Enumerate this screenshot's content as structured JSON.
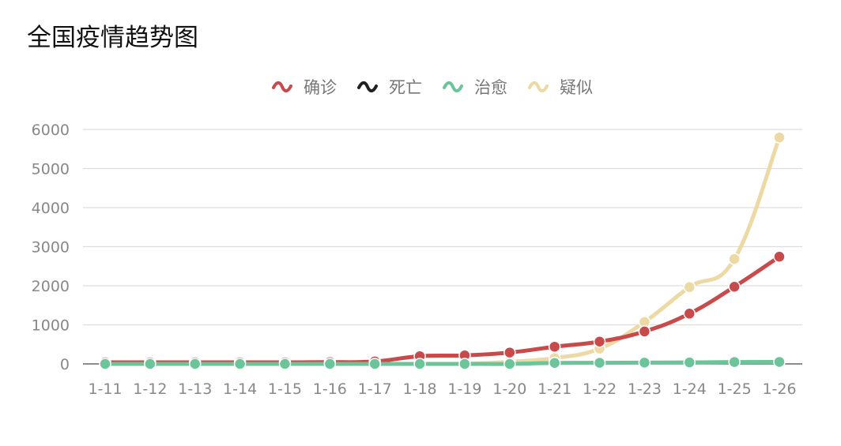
{
  "chart_data": {
    "type": "line",
    "title": "全国疫情趋势图",
    "categories": [
      "1-11",
      "1-12",
      "1-13",
      "1-14",
      "1-15",
      "1-16",
      "1-17",
      "1-18",
      "1-19",
      "1-20",
      "1-21",
      "1-22",
      "1-23",
      "1-24",
      "1-25",
      "1-26"
    ],
    "ylim": [
      0,
      6000
    ],
    "yticks": [
      0,
      1000,
      2000,
      3000,
      4000,
      5000,
      6000
    ],
    "grid": true,
    "legend_position": "top",
    "series": [
      {
        "name": "确诊",
        "color": "#c94a4a",
        "values": [
          41,
          41,
          41,
          41,
          41,
          45,
          62,
          198,
          218,
          291,
          440,
          571,
          830,
          1287,
          1975,
          2744
        ]
      },
      {
        "name": "死亡",
        "color": "#222222",
        "values": [
          1,
          1,
          1,
          1,
          2,
          2,
          2,
          3,
          4,
          6,
          9,
          17,
          25,
          41,
          56,
          80
        ]
      },
      {
        "name": "治愈",
        "color": "#6cc59a",
        "values": [
          0,
          0,
          0,
          0,
          0,
          0,
          0,
          0,
          0,
          0,
          25,
          28,
          34,
          38,
          49,
          51
        ]
      },
      {
        "name": "疑似",
        "color": "#ecd9a4",
        "values": [
          null,
          null,
          null,
          null,
          null,
          null,
          null,
          null,
          0,
          54,
          149,
          393,
          1072,
          1965,
          2684,
          5794
        ]
      }
    ]
  }
}
